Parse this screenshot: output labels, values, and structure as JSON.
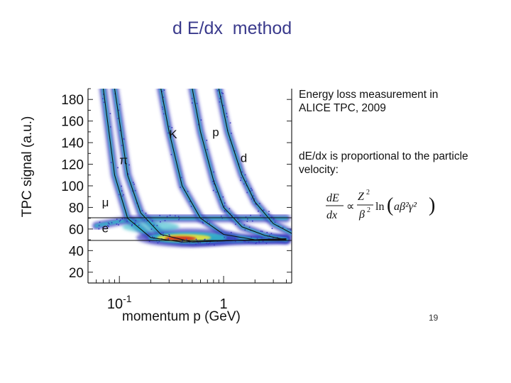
{
  "slide": {
    "title": "d E/dx  method",
    "page_number": "19"
  },
  "description": {
    "line1": "Energy loss measurement in ALICE TPC, 2009",
    "line2": "dE/dx is proportional to the particle velocity:"
  },
  "formula": {
    "dE": "dE",
    "dx": "dx",
    "propto": "∝",
    "Z": "Z",
    "beta": "β",
    "exp2": "2",
    "ln": "ln",
    "arg": "aβ²γ²"
  },
  "colors": {
    "title": "#3a3a8c",
    "band_outer": "#3b3bbf",
    "band_mid": "#2fb7c9",
    "band_core": "#e8e23a",
    "band_peak": "#d42a1a"
  },
  "chart_data": {
    "type": "scatter",
    "xlabel": "momentum p (GeV)",
    "ylabel": "TPC signal (a.u.)",
    "x_scale": "log",
    "xlim": [
      0.05,
      4.5
    ],
    "ylim": [
      10,
      190
    ],
    "y_ticks": [
      20,
      40,
      60,
      80,
      100,
      120,
      140,
      160,
      180
    ],
    "x_ticks": [
      {
        "value": 0.1,
        "base": "10",
        "exp": "-1"
      },
      {
        "value": 1,
        "base": "1",
        "exp": ""
      }
    ],
    "series": [
      {
        "name": "e",
        "x": [
          0.06,
          0.1,
          0.2,
          0.5,
          1,
          2,
          4
        ],
        "y": [
          63,
          67,
          70,
          70,
          70,
          70,
          70
        ]
      },
      {
        "name": "μ",
        "x": [
          0.07,
          0.09,
          0.12,
          0.2,
          0.4,
          1,
          4
        ],
        "y": [
          190,
          110,
          70,
          52,
          48,
          49,
          51
        ]
      },
      {
        "name": "π",
        "x": [
          0.09,
          0.12,
          0.16,
          0.25,
          0.5,
          1,
          4
        ],
        "y": [
          190,
          110,
          75,
          55,
          48,
          49,
          51
        ]
      },
      {
        "name": "K",
        "x": [
          0.25,
          0.3,
          0.4,
          0.6,
          1,
          2,
          4
        ],
        "y": [
          190,
          150,
          100,
          70,
          55,
          50,
          50
        ]
      },
      {
        "name": "p",
        "x": [
          0.5,
          0.6,
          0.8,
          1,
          1.5,
          2.5,
          4
        ],
        "y": [
          190,
          150,
          105,
          80,
          62,
          54,
          50
        ]
      },
      {
        "name": "d",
        "x": [
          0.9,
          1.1,
          1.5,
          2,
          3,
          4.5
        ],
        "y": [
          190,
          150,
          110,
          85,
          65,
          56
        ]
      }
    ]
  }
}
